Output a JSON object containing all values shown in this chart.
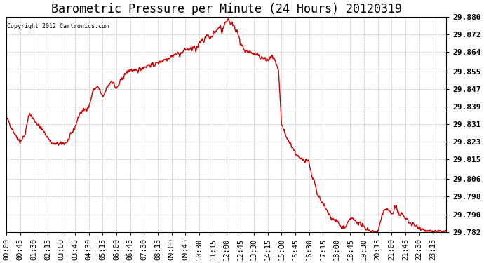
{
  "title": "Barometric Pressure per Minute (24 Hours) 20120319",
  "copyright": "Copyright 2012 Cartronics.com",
  "line_color": "#cc0000",
  "background_color": "#ffffff",
  "grid_color": "#c0c0c0",
  "ylim": [
    29.782,
    29.88
  ],
  "yticks": [
    29.782,
    29.79,
    29.798,
    29.806,
    29.815,
    29.823,
    29.831,
    29.839,
    29.847,
    29.855,
    29.864,
    29.872,
    29.88
  ],
  "xtick_labels": [
    "00:00",
    "00:45",
    "01:30",
    "02:15",
    "03:00",
    "03:45",
    "04:30",
    "05:15",
    "06:00",
    "06:45",
    "07:30",
    "08:15",
    "09:00",
    "09:45",
    "10:30",
    "11:15",
    "12:00",
    "12:45",
    "13:30",
    "14:15",
    "15:00",
    "15:45",
    "16:30",
    "17:15",
    "18:00",
    "18:45",
    "19:30",
    "20:15",
    "21:00",
    "21:45",
    "22:30",
    "23:15"
  ],
  "title_fontsize": 12,
  "tick_fontsize": 7.5,
  "line_width": 1.0
}
